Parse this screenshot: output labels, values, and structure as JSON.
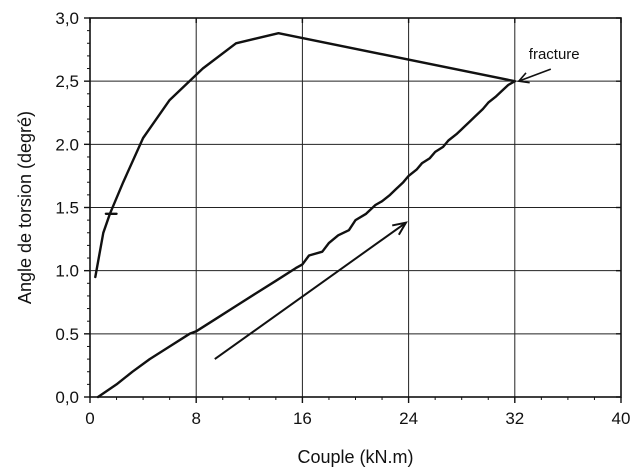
{
  "chart_data": {
    "type": "line",
    "title": "",
    "xlabel": "Couple (kN.m)",
    "ylabel": "Angle de torsion  (degré)",
    "xlim": [
      0,
      40
    ],
    "ylim": [
      0,
      3
    ],
    "x_ticks": [
      0,
      8,
      16,
      24,
      32,
      40
    ],
    "x_tick_labels": [
      "0",
      "8",
      "16",
      "24",
      "32",
      "40"
    ],
    "y_ticks": [
      0,
      0.5,
      1,
      1.5,
      2,
      2.5,
      3
    ],
    "y_tick_labels": [
      "0,0",
      "0.5",
      "1.0",
      "1.5",
      "2.0",
      "2,5",
      "3,0"
    ],
    "grid": true,
    "legend": "none",
    "series": [
      {
        "x": [
          0.6,
          2.0,
          3.2,
          4.5,
          6.0,
          7.5,
          8.0,
          9.5,
          11.0,
          12.5,
          14.0,
          15.5,
          16.0,
          16.5,
          17.5,
          18.0,
          18.7,
          19.5,
          20.0,
          20.8,
          21.5,
          22.0,
          22.6,
          23.0,
          23.6,
          24.0,
          24.6,
          25.0,
          25.6,
          26.0,
          26.6,
          27.0,
          27.6,
          28.0,
          28.6,
          29.0,
          29.6,
          30.0,
          30.6,
          31.0,
          31.5,
          32.0
        ],
        "y": [
          0.0,
          0.1,
          0.2,
          0.3,
          0.4,
          0.5,
          0.52,
          0.62,
          0.72,
          0.82,
          0.92,
          1.02,
          1.05,
          1.12,
          1.15,
          1.22,
          1.28,
          1.32,
          1.4,
          1.45,
          1.52,
          1.55,
          1.6,
          1.64,
          1.7,
          1.75,
          1.8,
          1.85,
          1.89,
          1.94,
          1.98,
          2.03,
          2.08,
          2.12,
          2.18,
          2.22,
          2.28,
          2.33,
          2.38,
          2.42,
          2.47,
          2.5
        ]
      },
      {
        "x": [
          32.0,
          14.2,
          11.0,
          8.5,
          6.0,
          4.0,
          2.5,
          1.5,
          1.0,
          0.4
        ],
        "y": [
          2.5,
          2.88,
          2.8,
          2.6,
          2.35,
          2.05,
          1.7,
          1.45,
          1.3,
          0.95
        ]
      },
      {
        "x": [
          1.2,
          2.0
        ],
        "y": [
          1.45,
          1.45
        ]
      }
    ],
    "annotations": [
      {
        "text": "fracture",
        "x": 32.0,
        "y": 2.5
      }
    ]
  }
}
